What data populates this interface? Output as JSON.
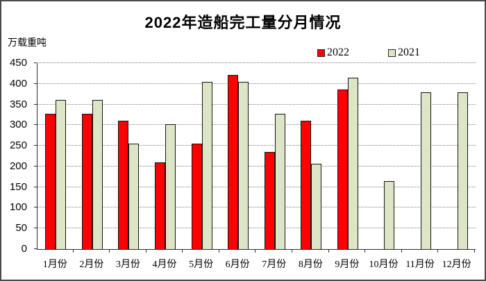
{
  "header": {
    "title": "2022年造船完工量分月情况"
  },
  "axis": {
    "unit_label": "万载重吨"
  },
  "legend": {
    "items": [
      {
        "label": "2022",
        "color": "#fe0000"
      },
      {
        "label": "2021",
        "color": "#dce5c6"
      }
    ]
  },
  "chart_data": {
    "type": "bar",
    "title": "2022年造船完工量分月情况",
    "ylabel": "万载重吨",
    "categories": [
      "1月份",
      "2月份",
      "3月份",
      "4月份",
      "5月份",
      "6月份",
      "7月份",
      "8月份",
      "9月份",
      "10月份",
      "11月份",
      "12月份"
    ],
    "series": [
      {
        "name": "2022",
        "color": "#fe0000",
        "values": [
          327,
          327,
          310,
          210,
          256,
          422,
          235,
          310,
          386,
          null,
          null,
          null
        ]
      },
      {
        "name": "2021",
        "color": "#dce5c6",
        "values": [
          361,
          361,
          255,
          302,
          405,
          405,
          327,
          207,
          414,
          165,
          380,
          380
        ]
      }
    ],
    "ylim": [
      0,
      450
    ],
    "ytick_step": 50,
    "yticks": [
      0,
      50,
      100,
      150,
      200,
      250,
      300,
      350,
      400,
      450
    ],
    "grid": "horizontal-dotted",
    "legend_position": "top-right",
    "bar_border_color": "#141414"
  }
}
